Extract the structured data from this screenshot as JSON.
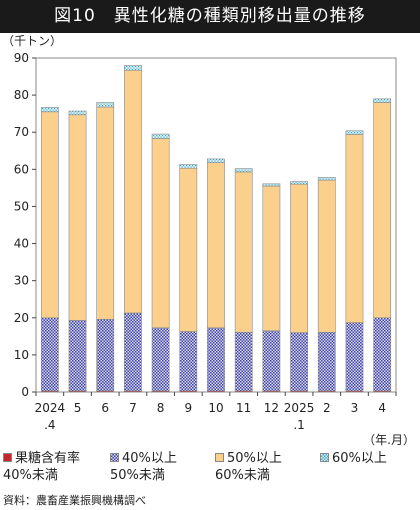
{
  "title": "図10　異性化糖の種類別移出量の推移",
  "source": "資料：農畜産業振興機構調べ",
  "chart_data": {
    "type": "bar",
    "stacked": true,
    "unit_label": "（千トン）",
    "xlabel": "（年.月）",
    "ylim": [
      0,
      90
    ],
    "yticks": [
      0,
      10,
      20,
      30,
      40,
      50,
      60,
      70,
      80,
      90
    ],
    "categories": [
      "2024.4",
      "5",
      "6",
      "7",
      "8",
      "9",
      "10",
      "11",
      "12",
      "2025.1",
      "2",
      "3",
      "4"
    ],
    "tick_labels": [
      [
        "2024",
        ".4"
      ],
      [
        "5"
      ],
      [
        "6"
      ],
      [
        "7"
      ],
      [
        "8"
      ],
      [
        "9"
      ],
      [
        "10"
      ],
      [
        "11"
      ],
      [
        "12"
      ],
      [
        "2025",
        ".1"
      ],
      [
        "2"
      ],
      [
        "3"
      ],
      [
        "4"
      ]
    ],
    "series": [
      {
        "name": "果糖含有率",
        "name_sub": "40%未満",
        "color": "#c0282d",
        "pattern": "solid",
        "values": [
          0.3,
          0.3,
          0.3,
          0.3,
          0.3,
          0.3,
          0.3,
          0.3,
          0.3,
          0.3,
          0.3,
          0.3,
          0.3
        ]
      },
      {
        "name": "40%以上",
        "name_sub": "50%未満",
        "color": "#5b5fb5",
        "pattern": "checker",
        "values": [
          19.7,
          19.0,
          19.3,
          21.0,
          17.0,
          16.0,
          17.0,
          15.8,
          16.2,
          15.7,
          15.8,
          18.4,
          19.7
        ]
      },
      {
        "name": "50%以上",
        "name_sub": "60%未満",
        "color": "#fbd08c",
        "pattern": "solid",
        "values": [
          55.5,
          55.4,
          57.2,
          65.4,
          51.0,
          44.0,
          44.5,
          43.2,
          39.0,
          40.0,
          41.0,
          50.7,
          58.0
        ]
      },
      {
        "name": "60%以上",
        "name_sub": "",
        "color": "#a6dbe8",
        "pattern": "dots",
        "values": [
          1.2,
          1.0,
          1.2,
          1.3,
          1.2,
          1.0,
          1.0,
          0.9,
          0.6,
          0.7,
          0.7,
          1.0,
          1.0
        ]
      }
    ],
    "grid": false,
    "legend_position": "bottom"
  }
}
